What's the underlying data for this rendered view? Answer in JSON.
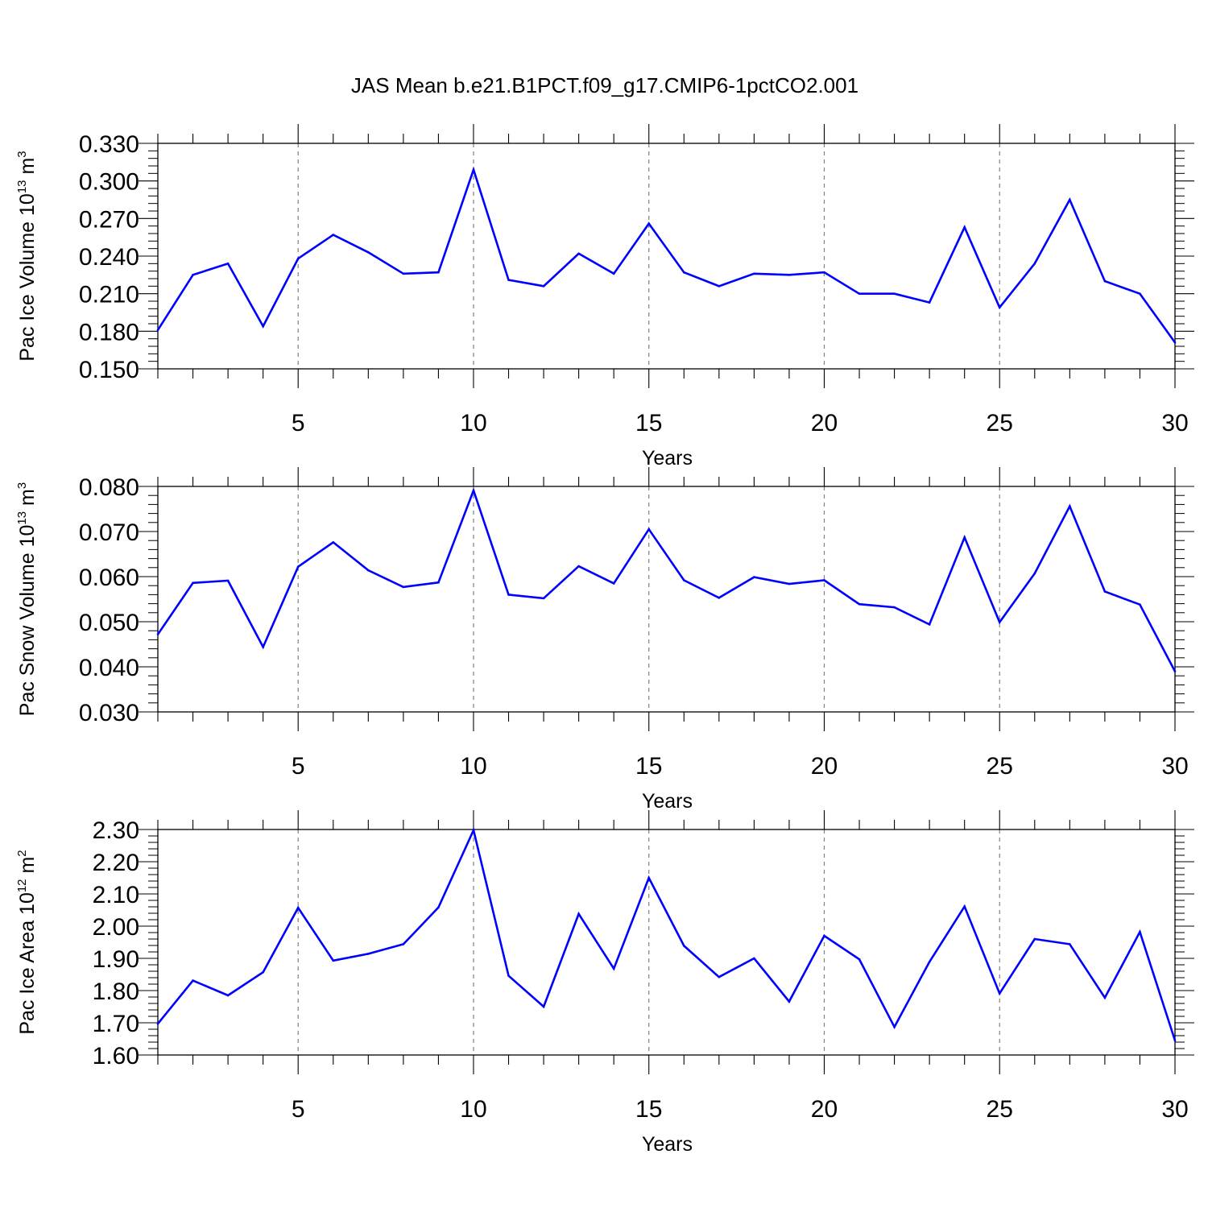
{
  "title": "JAS Mean b.e21.B1PCT.f09_g17.CMIP6-1pctCO2.001",
  "colors": {
    "line": "#0000ff",
    "axis": "#000000",
    "grid": "#808080"
  },
  "chart_data": [
    {
      "type": "line",
      "xlabel": "Years",
      "ylabel": {
        "prefix": "Pac Ice Volume 10",
        "exp": "13",
        "unit": " m",
        "unit_exp": "3"
      },
      "xlim": [
        1,
        30
      ],
      "ylim": [
        0.15,
        0.33
      ],
      "x_ticks": [
        5,
        10,
        15,
        20,
        25,
        30
      ],
      "y_ticks": [
        "0.150",
        "0.180",
        "0.210",
        "0.240",
        "0.270",
        "0.300",
        "0.330"
      ],
      "grid": "vertical dashed at major x ticks",
      "series": [
        {
          "name": "Pac Ice Volume",
          "x": [
            1,
            2,
            3,
            4,
            5,
            6,
            7,
            8,
            9,
            10,
            11,
            12,
            13,
            14,
            15,
            16,
            17,
            18,
            19,
            20,
            21,
            22,
            23,
            24,
            25,
            26,
            27,
            28,
            29,
            30
          ],
          "values": [
            0.181,
            0.225,
            0.234,
            0.184,
            0.238,
            0.257,
            0.243,
            0.226,
            0.227,
            0.309,
            0.221,
            0.216,
            0.242,
            0.226,
            0.266,
            0.227,
            0.216,
            0.226,
            0.225,
            0.227,
            0.21,
            0.21,
            0.203,
            0.263,
            0.199,
            0.234,
            0.285,
            0.22,
            0.21,
            0.171
          ]
        }
      ]
    },
    {
      "type": "line",
      "xlabel": "Years",
      "ylabel": {
        "prefix": "Pac Snow Volume 10",
        "exp": "13",
        "unit": " m",
        "unit_exp": "3"
      },
      "xlim": [
        1,
        30
      ],
      "ylim": [
        0.03,
        0.08
      ],
      "x_ticks": [
        5,
        10,
        15,
        20,
        25,
        30
      ],
      "y_ticks": [
        "0.030",
        "0.040",
        "0.050",
        "0.060",
        "0.070",
        "0.080"
      ],
      "grid": "vertical dashed at major x ticks",
      "series": [
        {
          "name": "Pac Snow Volume",
          "x": [
            1,
            2,
            3,
            4,
            5,
            6,
            7,
            8,
            9,
            10,
            11,
            12,
            13,
            14,
            15,
            16,
            17,
            18,
            19,
            20,
            21,
            22,
            23,
            24,
            25,
            26,
            27,
            28,
            29,
            30
          ],
          "values": [
            0.0472,
            0.0586,
            0.0591,
            0.0444,
            0.0622,
            0.0676,
            0.0614,
            0.0577,
            0.0587,
            0.0791,
            0.056,
            0.0552,
            0.0623,
            0.0585,
            0.0705,
            0.0592,
            0.0553,
            0.0599,
            0.0584,
            0.0592,
            0.0539,
            0.0532,
            0.0494,
            0.0687,
            0.0499,
            0.0607,
            0.0756,
            0.0567,
            0.0538,
            0.039
          ]
        }
      ]
    },
    {
      "type": "line",
      "xlabel": "Years",
      "ylabel": {
        "prefix": "Pac Ice Area 10",
        "exp": "12",
        "unit": " m",
        "unit_exp": "2"
      },
      "xlim": [
        1,
        30
      ],
      "ylim": [
        1.6,
        2.3
      ],
      "x_ticks": [
        5,
        10,
        15,
        20,
        25,
        30
      ],
      "y_ticks": [
        "1.60",
        "1.70",
        "1.80",
        "1.90",
        "2.00",
        "2.10",
        "2.20",
        "2.30"
      ],
      "grid": "vertical dashed at major x ticks",
      "series": [
        {
          "name": "Pac Ice Area",
          "x": [
            1,
            2,
            3,
            4,
            5,
            6,
            7,
            8,
            9,
            10,
            11,
            12,
            13,
            14,
            15,
            16,
            17,
            18,
            19,
            20,
            21,
            22,
            23,
            24,
            25,
            26,
            27,
            28,
            29,
            30
          ],
          "values": [
            1.697,
            1.831,
            1.785,
            1.857,
            2.057,
            1.893,
            1.914,
            1.944,
            2.058,
            2.298,
            1.846,
            1.75,
            2.038,
            1.868,
            2.15,
            1.939,
            1.842,
            1.9,
            1.766,
            1.97,
            1.897,
            1.687,
            1.889,
            2.061,
            1.791,
            1.96,
            1.944,
            1.778,
            1.982,
            1.645
          ]
        }
      ]
    }
  ]
}
